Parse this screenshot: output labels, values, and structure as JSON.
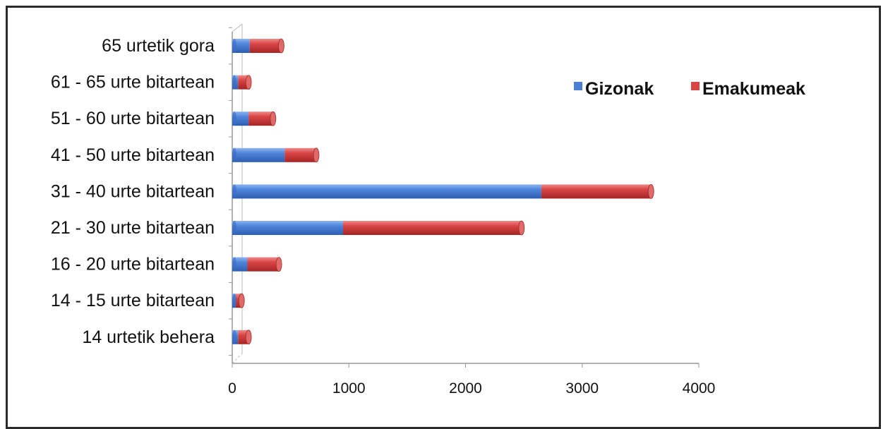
{
  "chart_data": {
    "type": "bar",
    "orientation": "horizontal",
    "stacked": true,
    "categories": [
      "65 urtetik gora",
      "61 - 65 urte bitartean",
      "51 - 60 urte bitartean",
      "41 - 50 urte bitartean",
      "31 - 40 urte bitartean",
      "21 - 30 urte bitartean",
      "16 - 20 urte bitartean",
      "14 - 15 urte bitartean",
      "14 urtetik behera"
    ],
    "series": [
      {
        "name": "Gizonak",
        "color": "#4a7fd4",
        "values": [
          150,
          50,
          140,
          450,
          2650,
          950,
          130,
          30,
          50
        ]
      },
      {
        "name": "Emakumeak",
        "color": "#d94545",
        "values": [
          270,
          90,
          210,
          270,
          940,
          1530,
          270,
          50,
          90
        ]
      }
    ],
    "xlim": [
      0,
      4000
    ],
    "xticks": [
      "0",
      "1000",
      "2000",
      "3000",
      "4000"
    ],
    "legend_position": "top-right",
    "grid": false,
    "xlabel": "",
    "ylabel": ""
  }
}
